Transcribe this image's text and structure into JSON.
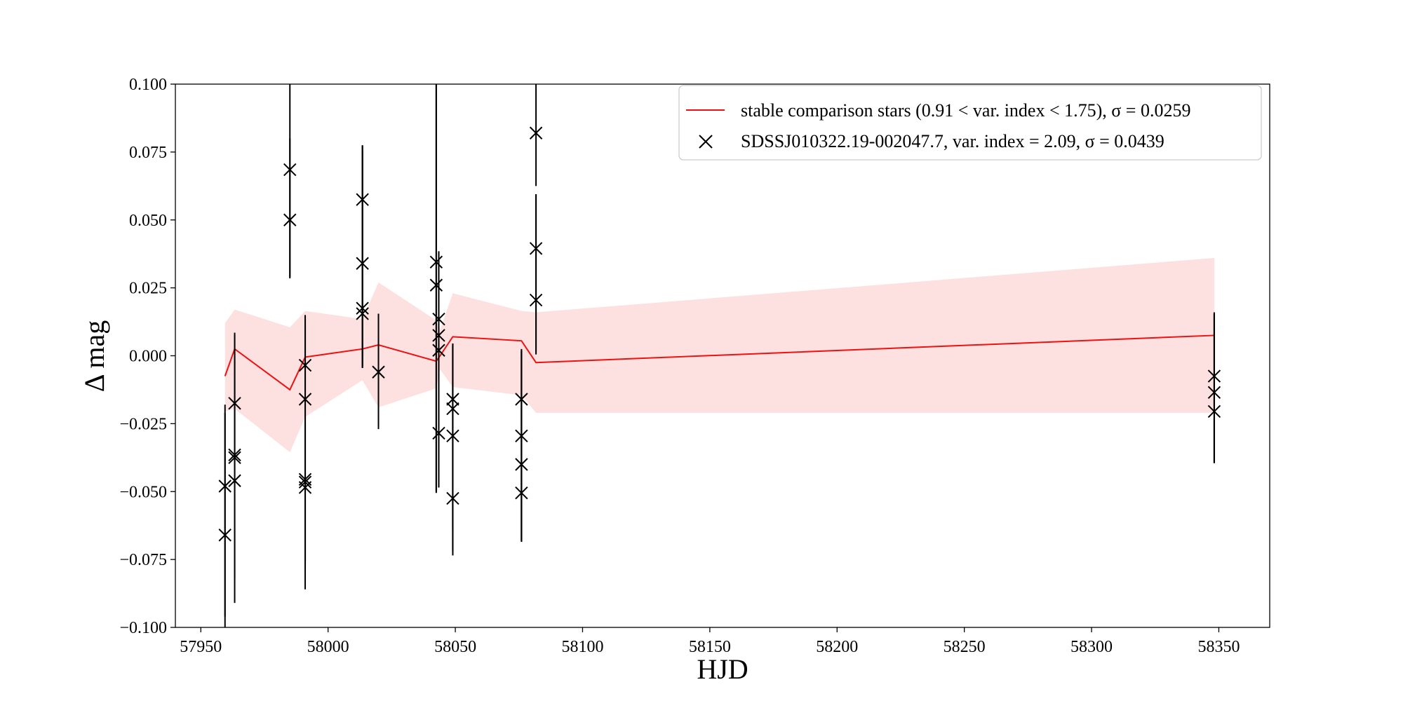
{
  "chart_data": {
    "type": "scatter",
    "xlabel": "HJD",
    "ylabel": "Δ mag",
    "xlim": [
      57940,
      58370
    ],
    "ylim": [
      -0.1,
      0.1
    ],
    "xticks": [
      57950,
      58000,
      58050,
      58100,
      58150,
      58200,
      58250,
      58300,
      58350
    ],
    "xtick_labels": [
      "57950",
      "58000",
      "58050",
      "58100",
      "58150",
      "58200",
      "58250",
      "58300",
      "58350"
    ],
    "yticks": [
      -0.1,
      -0.075,
      -0.05,
      -0.025,
      0.0,
      0.025,
      0.05,
      0.075,
      0.1
    ],
    "ytick_labels": [
      "−0.100",
      "−0.075",
      "−0.050",
      "−0.025",
      "0.000",
      "0.025",
      "0.050",
      "0.075",
      "0.100"
    ],
    "grid": false,
    "legend_position": "upper right",
    "colors": {
      "comparison_line": "#ee1111",
      "comparison_band": "#fde0e0",
      "target_points": "#000000"
    },
    "legend": [
      {
        "label": "stable comparison stars (0.91 < var. index < 1.75), σ = 0.0259",
        "marker": "line"
      },
      {
        "label": "SDSSJ010322.19-002047.7, var. index = 2.09, σ = 0.0439",
        "marker": "x"
      }
    ],
    "series": [
      {
        "name": "stable comparison stars (0.91 < var. index < 1.75), σ = 0.0259",
        "type": "line",
        "x": [
          57959.5,
          57963.3,
          57985.0,
          57991.0,
          58013.5,
          58019.8,
          58042.5,
          58044.0,
          58049.0,
          58076.0,
          58081.7,
          58348.2
        ],
        "y": [
          -0.0075,
          0.0025,
          -0.0125,
          -0.0005,
          0.0025,
          0.004,
          -0.002,
          0.0,
          0.007,
          0.0055,
          -0.0025,
          0.0075
        ],
        "upper": [
          0.012,
          0.017,
          0.0105,
          0.0165,
          0.0135,
          0.027,
          0.013,
          0.0095,
          0.023,
          0.0165,
          0.016,
          0.036
        ],
        "lower": [
          -0.0205,
          -0.0195,
          -0.0355,
          -0.0225,
          -0.009,
          -0.019,
          -0.012,
          -0.005,
          -0.0115,
          -0.0145,
          -0.021,
          -0.021
        ]
      },
      {
        "name": "SDSSJ010322.19-002047.7, var. index = 2.09, σ = 0.0439",
        "type": "errorbar",
        "x": [
          57959.5,
          57959.5,
          57963.3,
          57963.3,
          57963.3,
          57963.3,
          57985.0,
          57985.0,
          57991.0,
          57991.0,
          57991.0,
          57991.0,
          57991.0,
          58013.5,
          58013.5,
          58013.5,
          58013.5,
          58019.8,
          58042.5,
          58042.5,
          58043.5,
          58043.5,
          58043.5,
          58043.5,
          58049.0,
          58049.0,
          58049.0,
          58049.0,
          58076.0,
          58076.0,
          58076.0,
          58076.0,
          58081.7,
          58081.7,
          58081.7,
          58348.2,
          58348.2,
          58348.2
        ],
        "y": [
          -0.048,
          -0.066,
          -0.0175,
          -0.0365,
          -0.0375,
          -0.046,
          0.0685,
          0.05,
          -0.0035,
          -0.016,
          -0.0455,
          -0.0485,
          -0.0465,
          0.0575,
          0.034,
          0.0175,
          0.0155,
          -0.006,
          0.0345,
          0.026,
          0.0135,
          0.0075,
          0.002,
          -0.0285,
          -0.016,
          -0.0195,
          -0.0295,
          -0.0525,
          -0.016,
          -0.0295,
          -0.04,
          -0.0505,
          0.082,
          0.0395,
          0.0205,
          -0.0075,
          -0.0135,
          -0.0205
        ],
        "yerr_low": [
          0.048,
          0.065,
          0.0175,
          0.045,
          0.045,
          0.045,
          0.04,
          0.021,
          0.072,
          0.07,
          0.03,
          0.03,
          0.03,
          0.062,
          0.038,
          0.022,
          0.019,
          0.021,
          0.085,
          0.076,
          0.062,
          0.05,
          0.04,
          0.0195,
          0.056,
          0.044,
          0.044,
          0.019,
          0.052,
          0.039,
          0.028,
          0.018,
          0.0195,
          0.038,
          0.02,
          0.032,
          0.026,
          0.019
        ],
        "yerr_high": [
          0.03,
          0.045,
          0.019,
          0.045,
          0.045,
          0.045,
          0.035,
          0.03,
          0.018,
          0.031,
          0.06,
          0.06,
          0.06,
          0.02,
          0.043,
          0.06,
          0.06,
          0.0215,
          0.07,
          0.079,
          0.025,
          0.03,
          0.035,
          0.04,
          0.02,
          0.024,
          0.034,
          0.056,
          0.018,
          0.032,
          0.042,
          0.052,
          0.02,
          0.02,
          0.039,
          0.023,
          0.029,
          0.0365
        ]
      }
    ]
  }
}
